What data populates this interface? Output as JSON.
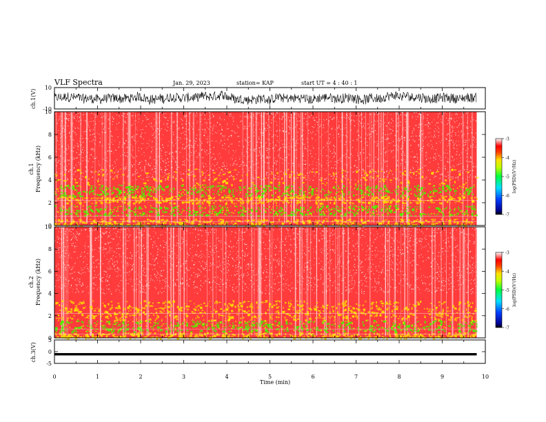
{
  "header": {
    "title": "VLF Spectra",
    "date": "Jan. 29, 2023",
    "station": "station= KAP",
    "start_ut": "start UT = 4 : 40 : 1"
  },
  "colors": {
    "spectrogram_base": "#ff3b3b",
    "band_yellow": "#ffe000",
    "band_green": "#4cf000",
    "waveform": "#000000"
  },
  "chart_data": [
    {
      "type": "line",
      "panel": "ch1-waveform",
      "ylabel": "ch.1(V)",
      "ylim": [
        -10,
        10
      ],
      "ytick_labels": [
        "10",
        "-10"
      ],
      "x_range_min": [
        0,
        9.8
      ],
      "description_of_values": "noisy waveform oscillating around 0 V with amplitude ~5 V"
    },
    {
      "type": "heatmap",
      "panel": "ch1-spectrogram",
      "ylabel": "ch.1\nFrequency (kHz)",
      "ylabel_top": "ch.1",
      "ylabel_bottom": "Frequency (kHz)",
      "ylim": [
        0,
        10
      ],
      "ytick_labels": [
        "0",
        "2",
        "4",
        "6",
        "8",
        "10"
      ],
      "x_range_min": [
        0,
        9.8
      ],
      "bands_khz": [
        {
          "from": 0.0,
          "to": 0.6,
          "level": "yellow"
        },
        {
          "from": 0.9,
          "to": 1.8,
          "level": "green"
        },
        {
          "from": 2.0,
          "to": 2.6,
          "level": "yellow"
        },
        {
          "from": 2.6,
          "to": 3.6,
          "level": "green"
        },
        {
          "from": 3.6,
          "to": 5.0,
          "level": "yellow-sparse"
        }
      ],
      "colorbar": {
        "label": "log(PSD)(V²/Hz)",
        "ticks": [
          "-3",
          "-4",
          "-5",
          "-6",
          "-7"
        ],
        "range": [
          -7,
          -3
        ]
      }
    },
    {
      "type": "heatmap",
      "panel": "ch2-spectrogram",
      "ylabel": "ch.2\nFrequency (kHz)",
      "ylabel_top": "ch.2",
      "ylabel_bottom": "Frequency (kHz)",
      "ylim": [
        0,
        10
      ],
      "ytick_labels": [
        "0",
        "2",
        "4",
        "6",
        "8",
        "10"
      ],
      "x_range_min": [
        0,
        9.8
      ],
      "bands_khz": [
        {
          "from": 0.0,
          "to": 0.5,
          "level": "yellow"
        },
        {
          "from": 0.6,
          "to": 1.6,
          "level": "green"
        },
        {
          "from": 1.6,
          "to": 2.8,
          "level": "yellow"
        },
        {
          "from": 2.8,
          "to": 3.4,
          "level": "yellow-sparse"
        }
      ],
      "colorbar": {
        "label": "log(PSD)(V²/Hz)",
        "ticks": [
          "-3",
          "-4",
          "-5",
          "-6",
          "-7"
        ],
        "range": [
          -7,
          -3
        ]
      }
    },
    {
      "type": "line",
      "panel": "ch3-waveform",
      "ylabel": "ch.3(V)",
      "ylim": [
        -5,
        5
      ],
      "ytick_labels": [
        "5",
        "0",
        "-5"
      ],
      "x_range_min": [
        0,
        9.8
      ],
      "description_of_values": "nearly flat dense trace around -1 V"
    }
  ],
  "xaxis": {
    "label": "Time (min)",
    "tick_labels": [
      "0",
      "1",
      "2",
      "3",
      "4",
      "5",
      "6",
      "7",
      "8",
      "9",
      "10"
    ],
    "range": [
      0,
      10
    ]
  }
}
